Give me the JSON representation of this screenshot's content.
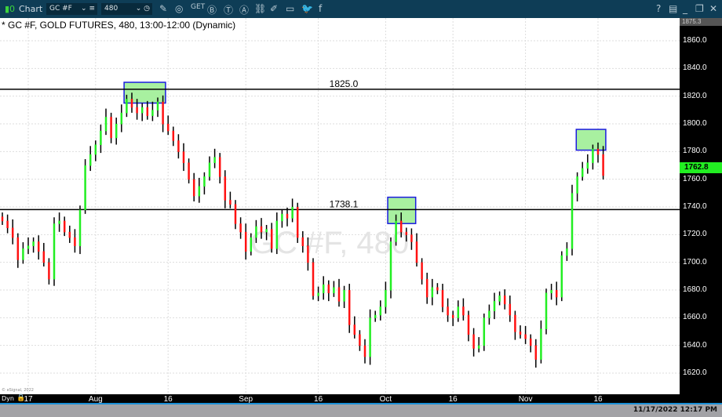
{
  "window": {
    "app_label": "Chart",
    "symbol": "GC #F",
    "interval": "480",
    "help": "?",
    "title": "* GC #F, GOLD FUTURES, 480, 13:00-12:00 (Dynamic)",
    "watermark": "GC #F, 480",
    "copyright": "© eSignal, 2022",
    "dyn": "Dyn",
    "timestamp": "11/17/2022 12:17 PM"
  },
  "toolbar_icons": [
    "pencil-icon",
    "wave-icon",
    "get-icon",
    "b-circle-icon",
    "t-circle-icon",
    "a-circle-icon",
    "link-icon",
    "edit-note-icon",
    "comment-icon",
    "twitter-icon",
    "facebook-icon"
  ],
  "chart_data": {
    "type": "ohlc",
    "ylim": [
      1610,
      1877
    ],
    "y_ticks": [
      "1860.0",
      "1840.0",
      "1820.0",
      "1800.0",
      "1780.0",
      "1760.0",
      "1740.0",
      "1720.0",
      "1700.0",
      "1680.0",
      "1660.0",
      "1640.0",
      "1620.0"
    ],
    "y_top_label": "1875.3",
    "last_price": "1762.8",
    "x_ticks": [
      {
        "label": "17",
        "bar": 5
      },
      {
        "label": "Aug",
        "bar": 18
      },
      {
        "label": "16",
        "bar": 32
      },
      {
        "label": "Sep",
        "bar": 47
      },
      {
        "label": "16",
        "bar": 61
      },
      {
        "label": "Oct",
        "bar": 74
      },
      {
        "label": "16",
        "bar": 87
      },
      {
        "label": "Nov",
        "bar": 101
      },
      {
        "label": "16",
        "bar": 115
      }
    ],
    "closes": [
      1730,
      1725,
      1718,
      1702,
      1710,
      1712,
      1715,
      1708,
      1700,
      1688,
      1728,
      1730,
      1722,
      1718,
      1712,
      1738,
      1770,
      1778,
      1785,
      1795,
      1805,
      1790,
      1800,
      1808,
      1818,
      1812,
      1808,
      1812,
      1806,
      1810,
      1816,
      1800,
      1795,
      1788,
      1780,
      1772,
      1760,
      1748,
      1755,
      1762,
      1772,
      1776,
      1762,
      1745,
      1742,
      1728,
      1722,
      1708,
      1718,
      1726,
      1722,
      1724,
      1710,
      1730,
      1735,
      1732,
      1740,
      1718,
      1712,
      1700,
      1676,
      1678,
      1684,
      1678,
      1682,
      1672,
      1680,
      1655,
      1648,
      1640,
      1632,
      1660,
      1662,
      1668,
      1680,
      1715,
      1730,
      1722,
      1720,
      1715,
      1700,
      1688,
      1675,
      1682,
      1680,
      1668,
      1662,
      1660,
      1668,
      1662,
      1648,
      1638,
      1640,
      1660,
      1665,
      1672,
      1676,
      1670,
      1662,
      1650,
      1648,
      1645,
      1640,
      1630,
      1652,
      1678,
      1680,
      1675,
      1705,
      1710,
      1750,
      1762,
      1768,
      1772,
      1782,
      1778,
      1762.8
    ],
    "hlines": [
      {
        "price": 1825.0,
        "label": "1825.0"
      },
      {
        "price": 1738.1,
        "label": "1738.1"
      }
    ],
    "boxes": [
      {
        "from_bar": 23.5,
        "to_bar": 31.5,
        "top": 1830,
        "bottom": 1815
      },
      {
        "from_bar": 74.4,
        "to_bar": 79.8,
        "top": 1747,
        "bottom": 1728
      },
      {
        "from_bar": 110.8,
        "to_bar": 116.5,
        "top": 1796,
        "bottom": 1781
      }
    ],
    "colors": {
      "up": "#22ee22",
      "down": "#ff1111",
      "wick": "#000000",
      "box_fill": "#a8f0a0",
      "box_stroke": "#1a1adf",
      "last": "#22ee22"
    }
  }
}
